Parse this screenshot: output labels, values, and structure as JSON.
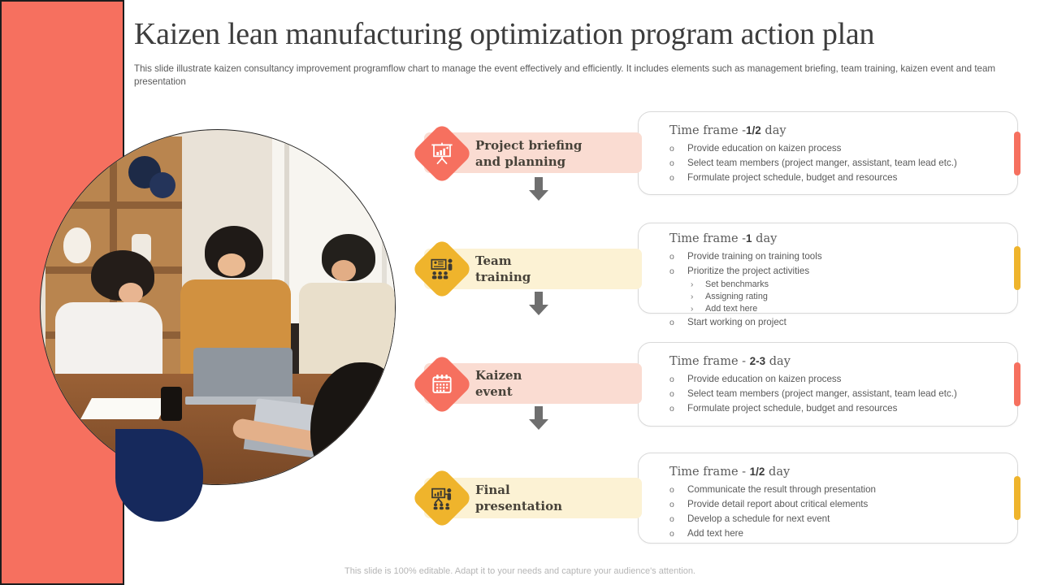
{
  "slide": {
    "title": "Kaizen lean manufacturing optimization program action plan",
    "subtitle": "This slide illustrate kaizen consultancy improvement programflow chart to manage the event effectively and efficiently. It includes elements such as management briefing, team training, kaizen event and team presentation",
    "footer": "This slide is 100% editable. Adapt it to your needs and capture your audience's attention."
  },
  "list_style": {
    "bullet_marker": "o",
    "sub_marker": "›"
  },
  "colors": {
    "salmon": "#F6705F",
    "red_light": "#FADCD2",
    "yellow": "#EFB42C",
    "yellow_light": "#FCF2D4",
    "navy": "#16295C",
    "arrow_gray": "#6F6F6F",
    "card_border": "#D9D9D9"
  },
  "steps": [
    {
      "label": "Project briefing\nand planning",
      "icon": "presentation-chart-icon",
      "theme": "red",
      "time_prefix": "Time frame -",
      "time_value": "1/2",
      "time_suffix": " day",
      "bullets": [
        {
          "text": "Provide education on kaizen process"
        },
        {
          "text": "Select team members (project manger, assistant, team lead etc.)"
        },
        {
          "text": "Formulate project schedule, budget and resources"
        }
      ]
    },
    {
      "label": "Team\ntraining",
      "icon": "team-training-icon",
      "theme": "yellow",
      "time_prefix": "Time frame -",
      "time_value": "1",
      "time_suffix": " day",
      "bullets": [
        {
          "text": "Provide training on training tools"
        },
        {
          "text": "Prioritize the project activities",
          "sub": [
            "Set benchmarks",
            "Assigning rating",
            "Add text here"
          ]
        },
        {
          "text": "Start working on project"
        }
      ]
    },
    {
      "label": "Kaizen\nevent",
      "icon": "calendar-icon",
      "theme": "red",
      "time_prefix": "Time frame - ",
      "time_value": "2-3",
      "time_suffix": " day",
      "bullets": [
        {
          "text": "Provide education on kaizen process"
        },
        {
          "text": "Select team members (project manger, assistant, team lead etc.)"
        },
        {
          "text": "Formulate project schedule, budget and resources"
        }
      ]
    },
    {
      "label": "Final\npresentation",
      "icon": "final-presentation-icon",
      "theme": "yellow",
      "time_prefix": "Time frame - ",
      "time_value": "1/2",
      "time_suffix": " day",
      "bullets": [
        {
          "text": "Communicate the result through presentation"
        },
        {
          "text": "Provide detail report about critical elements"
        },
        {
          "text": "Develop a schedule for next event"
        },
        {
          "text": "Add text here"
        }
      ]
    }
  ]
}
